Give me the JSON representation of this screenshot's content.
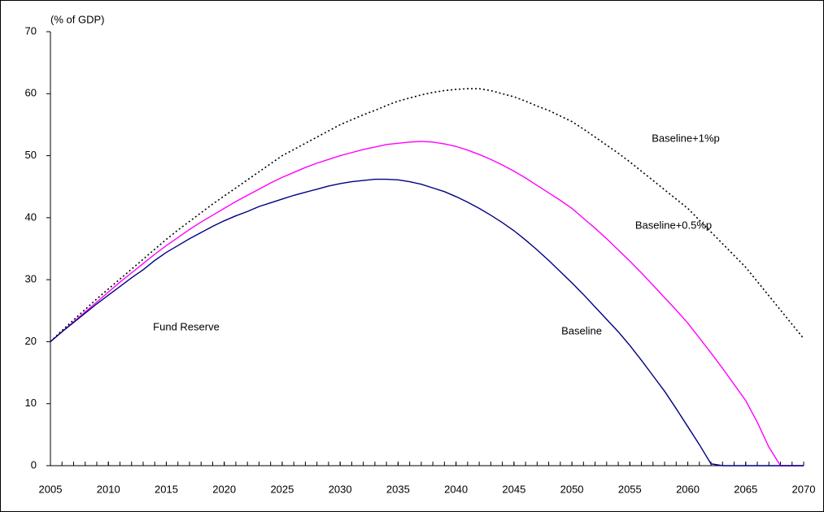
{
  "chart_data": {
    "type": "line",
    "y_axis_label": "(% of GDP)",
    "annotation": "Fund Reserve",
    "x": [
      2005,
      2006,
      2007,
      2008,
      2009,
      2010,
      2011,
      2012,
      2013,
      2014,
      2015,
      2016,
      2017,
      2018,
      2019,
      2020,
      2021,
      2022,
      2023,
      2024,
      2025,
      2026,
      2027,
      2028,
      2029,
      2030,
      2031,
      2032,
      2033,
      2034,
      2035,
      2036,
      2037,
      2038,
      2039,
      2040,
      2041,
      2042,
      2043,
      2044,
      2045,
      2046,
      2047,
      2048,
      2049,
      2050,
      2051,
      2052,
      2053,
      2054,
      2055,
      2056,
      2057,
      2058,
      2059,
      2060,
      2061,
      2062,
      2063,
      2064,
      2065,
      2066,
      2067,
      2068,
      2069,
      2070
    ],
    "series": [
      {
        "name": "Baseline+1%p",
        "color": "#000000",
        "dashed": true,
        "values": [
          20,
          21.8,
          23.5,
          25.2,
          26.9,
          28.5,
          30.1,
          31.7,
          33.3,
          34.9,
          36.5,
          38.0,
          39.4,
          40.8,
          42.2,
          43.5,
          44.8,
          46.1,
          47.4,
          48.7,
          50.0,
          51.0,
          52.0,
          53.0,
          54.0,
          55.0,
          55.8,
          56.6,
          57.3,
          58.1,
          58.8,
          59.3,
          59.8,
          60.2,
          60.5,
          60.7,
          60.8,
          60.8,
          60.5,
          60.0,
          59.5,
          58.8,
          58.0,
          57.3,
          56.4,
          55.5,
          54.3,
          53.0,
          51.7,
          50.4,
          49.0,
          47.5,
          46.0,
          44.5,
          43.0,
          41.5,
          39.6,
          37.7,
          35.8,
          33.9,
          32.0,
          29.7,
          27.4,
          25.1,
          22.8,
          20.5
        ]
      },
      {
        "name": "Baseline+0.5%p",
        "color": "#ff00ff",
        "dashed": false,
        "values": [
          20,
          21.6,
          23.2,
          24.8,
          26.4,
          28.0,
          29.6,
          31.1,
          32.6,
          34.1,
          35.5,
          36.8,
          38.1,
          39.3,
          40.4,
          41.5,
          42.6,
          43.6,
          44.6,
          45.6,
          46.5,
          47.3,
          48.1,
          48.8,
          49.4,
          50.0,
          50.5,
          51.0,
          51.4,
          51.8,
          52.0,
          52.2,
          52.3,
          52.2,
          51.9,
          51.5,
          50.9,
          50.2,
          49.4,
          48.5,
          47.5,
          46.4,
          45.2,
          44.0,
          42.8,
          41.5,
          39.9,
          38.3,
          36.6,
          34.8,
          33.0,
          31.1,
          29.1,
          27.1,
          25.1,
          23.0,
          20.6,
          18.2,
          15.7,
          13.1,
          10.5,
          7.0,
          3.0,
          0,
          0,
          0
        ]
      },
      {
        "name": "Baseline",
        "color": "#000080",
        "dashed": false,
        "values": [
          20,
          21.6,
          23.1,
          24.6,
          26.1,
          27.5,
          28.9,
          30.3,
          31.6,
          33.1,
          34.4,
          35.5,
          36.6,
          37.6,
          38.6,
          39.5,
          40.3,
          41.0,
          41.8,
          42.4,
          43.0,
          43.6,
          44.1,
          44.6,
          45.1,
          45.5,
          45.8,
          46.0,
          46.2,
          46.2,
          46.1,
          45.8,
          45.4,
          44.8,
          44.2,
          43.4,
          42.5,
          41.5,
          40.4,
          39.2,
          37.9,
          36.4,
          34.8,
          33.1,
          31.3,
          29.5,
          27.6,
          25.6,
          23.6,
          21.6,
          19.4,
          17.0,
          14.5,
          12.0,
          9.2,
          6.3,
          3.4,
          0.3,
          0,
          0,
          0,
          0,
          0,
          0,
          0,
          0
        ]
      }
    ],
    "xlim": [
      2005,
      2070
    ],
    "xticks": [
      2005,
      2010,
      2015,
      2020,
      2025,
      2030,
      2035,
      2040,
      2045,
      2050,
      2055,
      2060,
      2065,
      2070
    ],
    "ylim": [
      0,
      70
    ],
    "yticks": [
      0,
      10,
      20,
      30,
      40,
      50,
      60,
      70
    ]
  }
}
